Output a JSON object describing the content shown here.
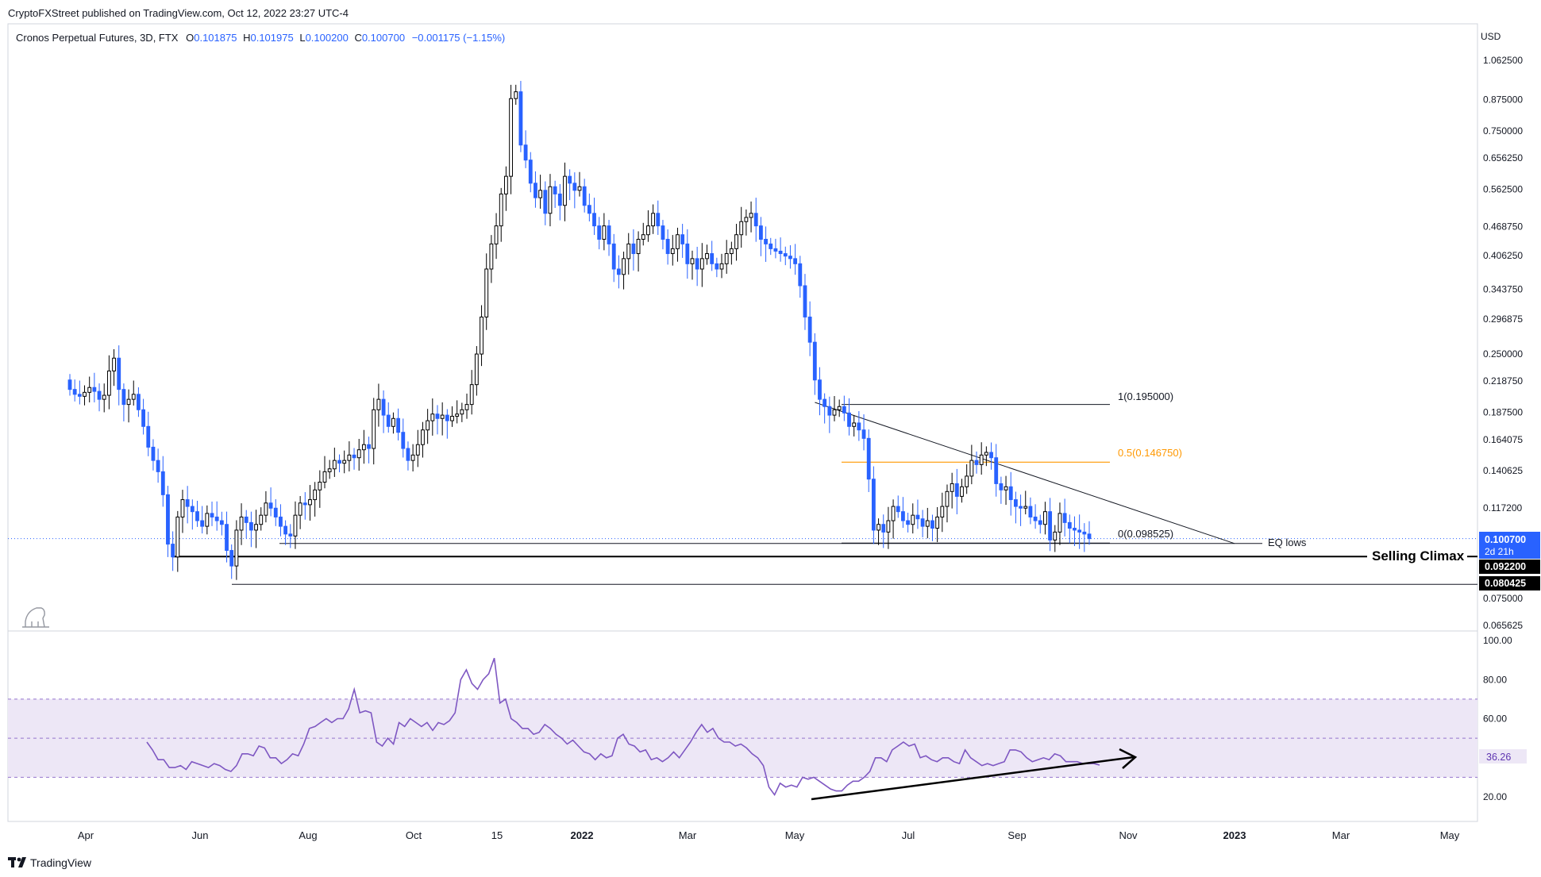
{
  "header": {
    "publisher_line": "CryptoFXStreet published on TradingView.com, Oct 12, 2022 23:27 UTC-4",
    "symbol_line": "Cronos Perpetual Futures, 3D, FTX",
    "ohlc": {
      "o_label": "O",
      "o": "0.101875",
      "h_label": "H",
      "h": "0.101975",
      "l_label": "L",
      "l": "0.100200",
      "c_label": "C",
      "c": "0.100700",
      "change": "−0.001175 (−1.15%)"
    }
  },
  "footer": {
    "brand": "TradingView"
  },
  "colors": {
    "up_candle_border": "#000000",
    "down_candle": "#2962ff",
    "fib_mid": "#ff9800",
    "rsi_line": "#7e57c2",
    "rsi_band": "#ede7f6",
    "price_tag": "#2962ff"
  },
  "chart_data": [
    {
      "type": "candlestick",
      "title": "",
      "xlabel": "",
      "ylabel": "",
      "currency_label": "USD",
      "y_scale": "log",
      "ylim": [
        0.06,
        1.1
      ],
      "x_tick_labels": [
        "Apr",
        "Jun",
        "Aug",
        "Oct",
        "15",
        "2022",
        "Mar",
        "May",
        "Jul",
        "Sep",
        "Nov",
        "2023",
        "Mar",
        "May"
      ],
      "y_tick_labels": [
        "1.062500",
        "0.875000",
        "0.750000",
        "0.656250",
        "0.562500",
        "0.468750",
        "0.406250",
        "0.343750",
        "0.296875",
        "0.250000",
        "0.218750",
        "0.187500",
        "0.164075",
        "0.140625",
        "0.117200",
        "0.075000",
        "0.065625"
      ],
      "y_ticks": [
        1.0625,
        0.875,
        0.75,
        0.65625,
        0.5625,
        0.46875,
        0.40625,
        0.34375,
        0.296875,
        0.25,
        0.21875,
        0.1875,
        0.164075,
        0.140625,
        0.1172,
        0.075,
        0.065625
      ],
      "closes": [
        0.21,
        0.205,
        0.203,
        0.207,
        0.212,
        0.208,
        0.2,
        0.204,
        0.23,
        0.245,
        0.21,
        0.195,
        0.2,
        0.205,
        0.19,
        0.175,
        0.158,
        0.148,
        0.14,
        0.125,
        0.098,
        0.092,
        0.112,
        0.122,
        0.118,
        0.115,
        0.11,
        0.107,
        0.114,
        0.112,
        0.11,
        0.108,
        0.095,
        0.088,
        0.105,
        0.112,
        0.109,
        0.105,
        0.108,
        0.113,
        0.12,
        0.117,
        0.112,
        0.107,
        0.103,
        0.102,
        0.113,
        0.12,
        0.119,
        0.122,
        0.128,
        0.133,
        0.14,
        0.142,
        0.148,
        0.146,
        0.148,
        0.152,
        0.15,
        0.156,
        0.16,
        0.157,
        0.19,
        0.2,
        0.185,
        0.175,
        0.182,
        0.17,
        0.157,
        0.148,
        0.152,
        0.16,
        0.172,
        0.18,
        0.186,
        0.182,
        0.185,
        0.18,
        0.184,
        0.186,
        0.19,
        0.195,
        0.215,
        0.25,
        0.3,
        0.38,
        0.43,
        0.47,
        0.55,
        0.6,
        0.88,
        0.91,
        0.7,
        0.65,
        0.58,
        0.54,
        0.56,
        0.5,
        0.57,
        0.55,
        0.52,
        0.6,
        0.58,
        0.56,
        0.57,
        0.52,
        0.5,
        0.47,
        0.44,
        0.47,
        0.43,
        0.38,
        0.37,
        0.4,
        0.43,
        0.41,
        0.44,
        0.45,
        0.47,
        0.5,
        0.47,
        0.44,
        0.41,
        0.42,
        0.45,
        0.43,
        0.39,
        0.4,
        0.38,
        0.4,
        0.41,
        0.39,
        0.38,
        0.39,
        0.41,
        0.42,
        0.45,
        0.48,
        0.49,
        0.5,
        0.47,
        0.44,
        0.43,
        0.42,
        0.415,
        0.41,
        0.405,
        0.4,
        0.39,
        0.35,
        0.3,
        0.265,
        0.22,
        0.2,
        0.193,
        0.185,
        0.19,
        0.193,
        0.187,
        0.175,
        0.178,
        0.172,
        0.165,
        0.135,
        0.105,
        0.108,
        0.104,
        0.11,
        0.118,
        0.115,
        0.11,
        0.108,
        0.113,
        0.111,
        0.107,
        0.11,
        0.106,
        0.112,
        0.118,
        0.127,
        0.132,
        0.124,
        0.13,
        0.137,
        0.148,
        0.145,
        0.152,
        0.154,
        0.15,
        0.132,
        0.128,
        0.13,
        0.122,
        0.118,
        0.117,
        0.118,
        0.112,
        0.11,
        0.108,
        0.115,
        0.1,
        0.104,
        0.114,
        0.109,
        0.106,
        0.105,
        0.104,
        0.103,
        0.1007
      ],
      "last_price": "0.100700",
      "countdown": "2d 21h",
      "tag_labels": [
        "0.092200",
        "0.080425"
      ],
      "levels": [
        {
          "label": "1(0.195000)",
          "value": 0.195
        },
        {
          "label": "0.5(0.146750)",
          "value": 0.14675
        },
        {
          "label": "0(0.098525)",
          "value": 0.098525
        }
      ],
      "horizontal_lines": [
        {
          "value": 0.0983,
          "label": "EQ lows"
        },
        {
          "value": 0.0922,
          "label": "Selling Climax"
        },
        {
          "value": 0.0804,
          "label": ""
        }
      ],
      "trendline": [
        {
          "date": "2022-05-13",
          "value": 0.197
        },
        {
          "date": "2022-12-31",
          "value": 0.0983
        }
      ]
    },
    {
      "type": "line",
      "title": "",
      "xlabel": "",
      "ylabel": "",
      "ylim": [
        0,
        100
      ],
      "y_tick_labels": [
        "100.00",
        "80.00",
        "60.00",
        "40.00",
        "20.00"
      ],
      "y_ticks": [
        100,
        80,
        60,
        40,
        20
      ],
      "bands": [
        30,
        50,
        70
      ],
      "current_value": "36.26",
      "values": [
        48,
        44,
        39,
        39,
        35,
        35,
        36,
        34,
        38,
        37,
        36,
        35,
        37,
        36,
        34,
        33,
        36,
        42,
        42,
        41,
        46,
        45,
        40,
        40,
        37,
        39,
        42,
        41,
        47,
        55,
        56,
        58,
        60,
        58,
        60,
        60,
        65,
        75,
        63,
        64,
        63,
        48,
        46,
        50,
        47,
        58,
        56,
        60,
        58,
        56,
        58,
        54,
        58,
        57,
        59,
        63,
        80,
        85,
        78,
        75,
        80,
        83,
        91,
        68,
        70,
        60,
        58,
        55,
        55,
        52,
        53,
        57,
        55,
        52,
        50,
        47,
        49,
        46,
        43,
        42,
        39,
        42,
        40,
        41,
        50,
        52,
        47,
        46,
        43,
        44,
        39,
        40,
        38,
        40,
        43,
        40,
        44,
        48,
        53,
        57,
        53,
        55,
        50,
        48,
        48,
        46,
        47,
        45,
        42,
        40,
        36,
        25,
        21,
        27,
        25,
        26,
        25,
        30,
        29,
        30,
        28,
        26,
        24,
        23,
        23,
        26,
        28,
        28,
        30,
        33,
        40,
        40,
        38,
        44,
        46,
        48,
        46,
        47,
        40,
        41,
        39,
        38,
        40,
        40,
        38,
        37,
        44,
        40,
        38,
        36,
        37,
        36,
        37,
        38,
        44,
        44,
        43,
        40,
        38,
        39,
        40,
        39,
        42,
        41,
        38,
        38,
        38,
        37,
        37,
        37,
        36.26
      ]
    }
  ]
}
